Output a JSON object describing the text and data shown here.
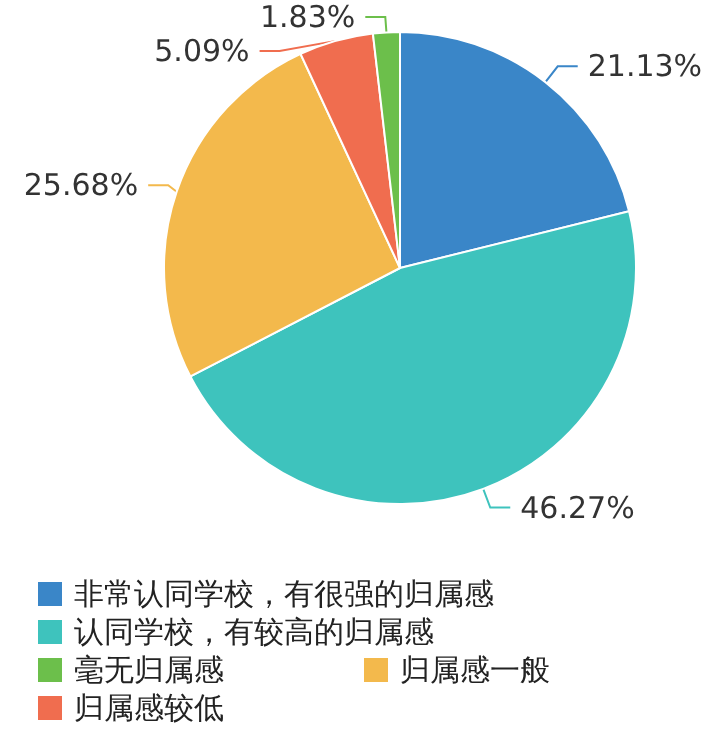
{
  "chart_data": {
    "type": "pie",
    "categories": [
      "非常认同学校，有很强的归属感",
      "认同学校，有较高的归属感",
      "归属感一般",
      "归属感较低",
      "毫无归属感"
    ],
    "values": [
      21.13,
      46.27,
      25.68,
      5.09,
      1.83
    ],
    "colors": [
      "#3a86c8",
      "#3ec3bd",
      "#f3b94c",
      "#f06d4f",
      "#6cbf4b"
    ],
    "value_labels": [
      "21.13%",
      "46.27%",
      "25.68%",
      "5.09%",
      "1.83%"
    ],
    "legend": "bottom"
  }
}
